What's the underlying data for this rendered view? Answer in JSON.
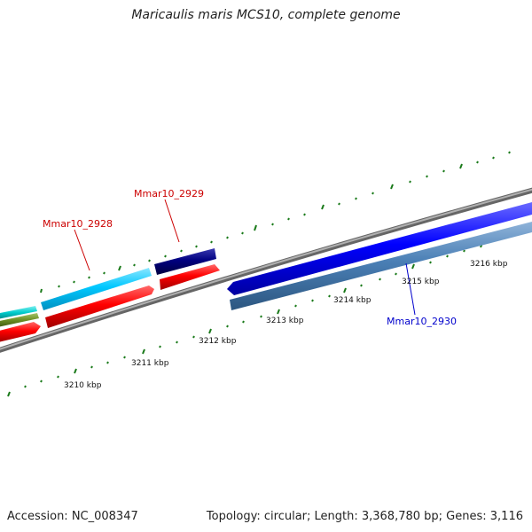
{
  "title": "Maricaulis maris MCS10, complete genome",
  "footer": {
    "accession": "Accession: NC_008347",
    "topology": "Topology: circular; Length: 3,368,780 bp; Genes: 3,116"
  },
  "ruler": {
    "tick_labels": [
      "3210 kbp",
      "3211 kbp",
      "3212 kbp",
      "3213 kbp",
      "3214 kbp",
      "3215 kbp",
      "3216 kbp"
    ]
  },
  "genes": [
    {
      "label": "Mmar10_2928",
      "color": "#cc0000"
    },
    {
      "label": "Mmar10_2929",
      "color": "#cc0000"
    },
    {
      "label": "Mmar10_2930",
      "color": "#0000cc"
    }
  ],
  "colors": {
    "backbone": "#888888",
    "tick": "#1a7a1a",
    "forward_cds": "#ff0000",
    "light_blue_cds": "#00bfff",
    "dark_blue_cds": "#00007a",
    "blue_cds": "#0000ff",
    "steel_blue_cds": "#4a7fb5",
    "cyan_cds": "#00cccc",
    "olive_cds": "#6b8e23"
  }
}
